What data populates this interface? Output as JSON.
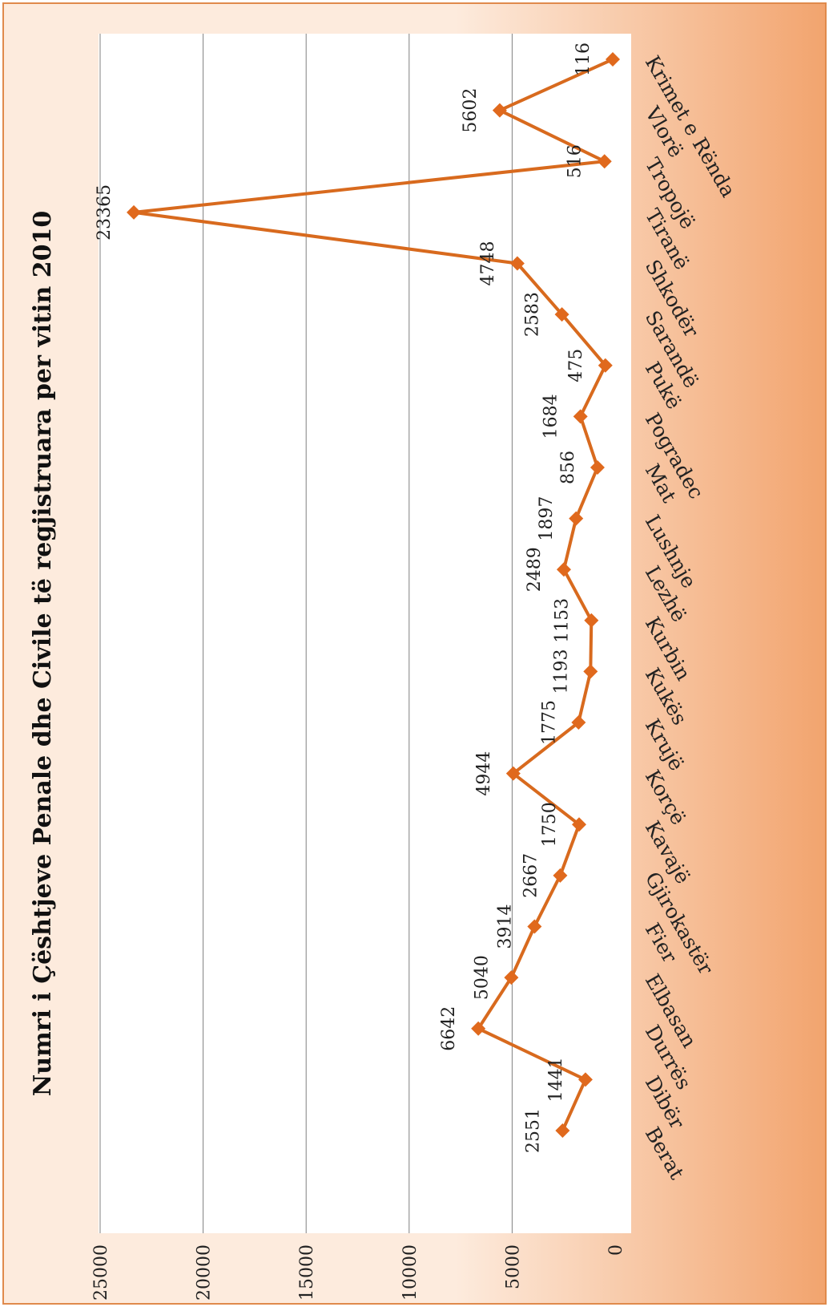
{
  "chart_data": {
    "type": "line",
    "title": "Numri i Çështjeve Penale dhe Civile të regjistruara per vitin 2010",
    "xlabel": "",
    "ylabel": "",
    "categories": [
      "Berat",
      "Dibër",
      "Durrës",
      "Elbasan",
      "Fier",
      "Gjirokastër",
      "Kavajë",
      "Korçë",
      "Krujë",
      "Kukës",
      "Kurbin",
      "Lezhë",
      "Lushnje",
      "Mat",
      "Pogradec",
      "Pukë",
      "Sarandë",
      "Shkodër",
      "Tiranë",
      "Tropojë",
      "Vlorë",
      "Krimet e Rënda"
    ],
    "series": [
      {
        "values": [
          2551,
          1441,
          6642,
          5040,
          3914,
          2667,
          1750,
          4944,
          1775,
          1193,
          1153,
          2489,
          1897,
          856,
          1684,
          475,
          2583,
          4748,
          23365,
          516,
          5602,
          116
        ]
      }
    ],
    "ylim": [
      0,
      25000
    ],
    "yticks": [
      0,
      5000,
      10000,
      15000,
      20000,
      25000
    ],
    "grid": true,
    "legend": "none",
    "orientation": "rotated",
    "colors": {
      "line": "#D86A1E",
      "marker": "#E0691D",
      "grid": "#808080",
      "plot_bg": "#FFFFFF",
      "frame_light": "#FDEBDD",
      "frame_dark": "#F2A46E",
      "frame_border": "#E08A4C"
    }
  }
}
